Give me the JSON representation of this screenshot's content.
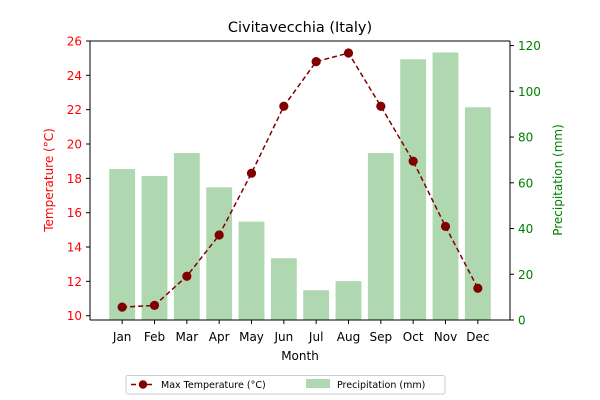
{
  "chart_data": {
    "type": "bar+line",
    "title": "Civitavecchia (Italy)",
    "xlabel": "Month",
    "categories": [
      "Jan",
      "Feb",
      "Mar",
      "Apr",
      "May",
      "Jun",
      "Jul",
      "Aug",
      "Sep",
      "Oct",
      "Nov",
      "Dec"
    ],
    "y_left": {
      "label": "Temperature (°C)",
      "color": "#ff0000",
      "range": [
        9.75,
        26.0
      ],
      "ticks": [
        10,
        12,
        14,
        16,
        18,
        20,
        22,
        24,
        26
      ]
    },
    "y_right": {
      "label": "Precipitation (mm)",
      "color": "#008000",
      "range": [
        0,
        122
      ],
      "ticks": [
        0,
        20,
        40,
        60,
        80,
        100,
        120
      ]
    },
    "series": [
      {
        "name": "Max Temperature (°C)",
        "kind": "line",
        "axis": "left",
        "color": "#800000",
        "style": "dashed",
        "marker": "circle",
        "values": [
          10.5,
          10.6,
          12.3,
          14.7,
          18.3,
          22.2,
          24.8,
          25.3,
          22.2,
          19.0,
          15.2,
          11.6
        ]
      },
      {
        "name": "Precipitation (mm)",
        "kind": "bar",
        "axis": "right",
        "color": "#b0d8b0",
        "values": [
          66,
          63,
          73,
          58,
          43,
          27,
          13,
          17,
          73,
          114,
          117,
          93
        ]
      }
    ],
    "legend": {
      "position": "bottom-center",
      "entries": [
        "Max Temperature (°C)",
        "Precipitation (mm)"
      ]
    }
  }
}
